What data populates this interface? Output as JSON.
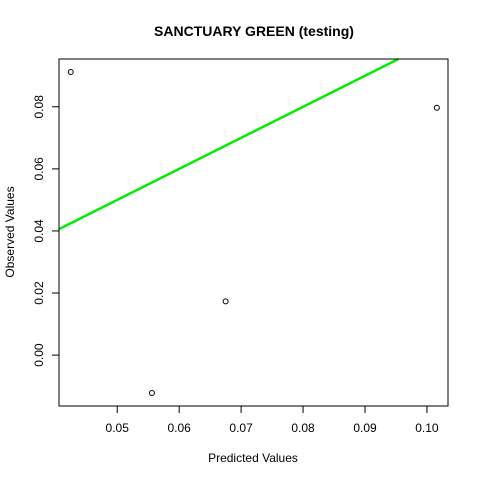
{
  "chart_data": {
    "type": "scatter",
    "title": "SANCTUARY GREEN (testing)",
    "xlabel": "Predicted Values",
    "ylabel": "Observed Values",
    "xlim": [
      0.0406,
      0.1034
    ],
    "ylim": [
      -0.0164,
      0.0954
    ],
    "x_ticks": [
      "0.05",
      "0.06",
      "0.07",
      "0.08",
      "0.09",
      "0.10"
    ],
    "y_ticks": [
      "0.00",
      "0.02",
      "0.04",
      "0.06",
      "0.08"
    ],
    "grid": false,
    "points": [
      {
        "x": 0.0425,
        "y": 0.0912
      },
      {
        "x": 0.0556,
        "y": -0.0122
      },
      {
        "x": 0.0675,
        "y": 0.0173
      },
      {
        "x": 0.1016,
        "y": 0.0797
      }
    ],
    "reference_line": {
      "x1": 0.0406,
      "y1": 0.0406,
      "x2": 0.0954,
      "y2": 0.0954,
      "color": "#00ee00"
    },
    "point_color": "#000000"
  }
}
